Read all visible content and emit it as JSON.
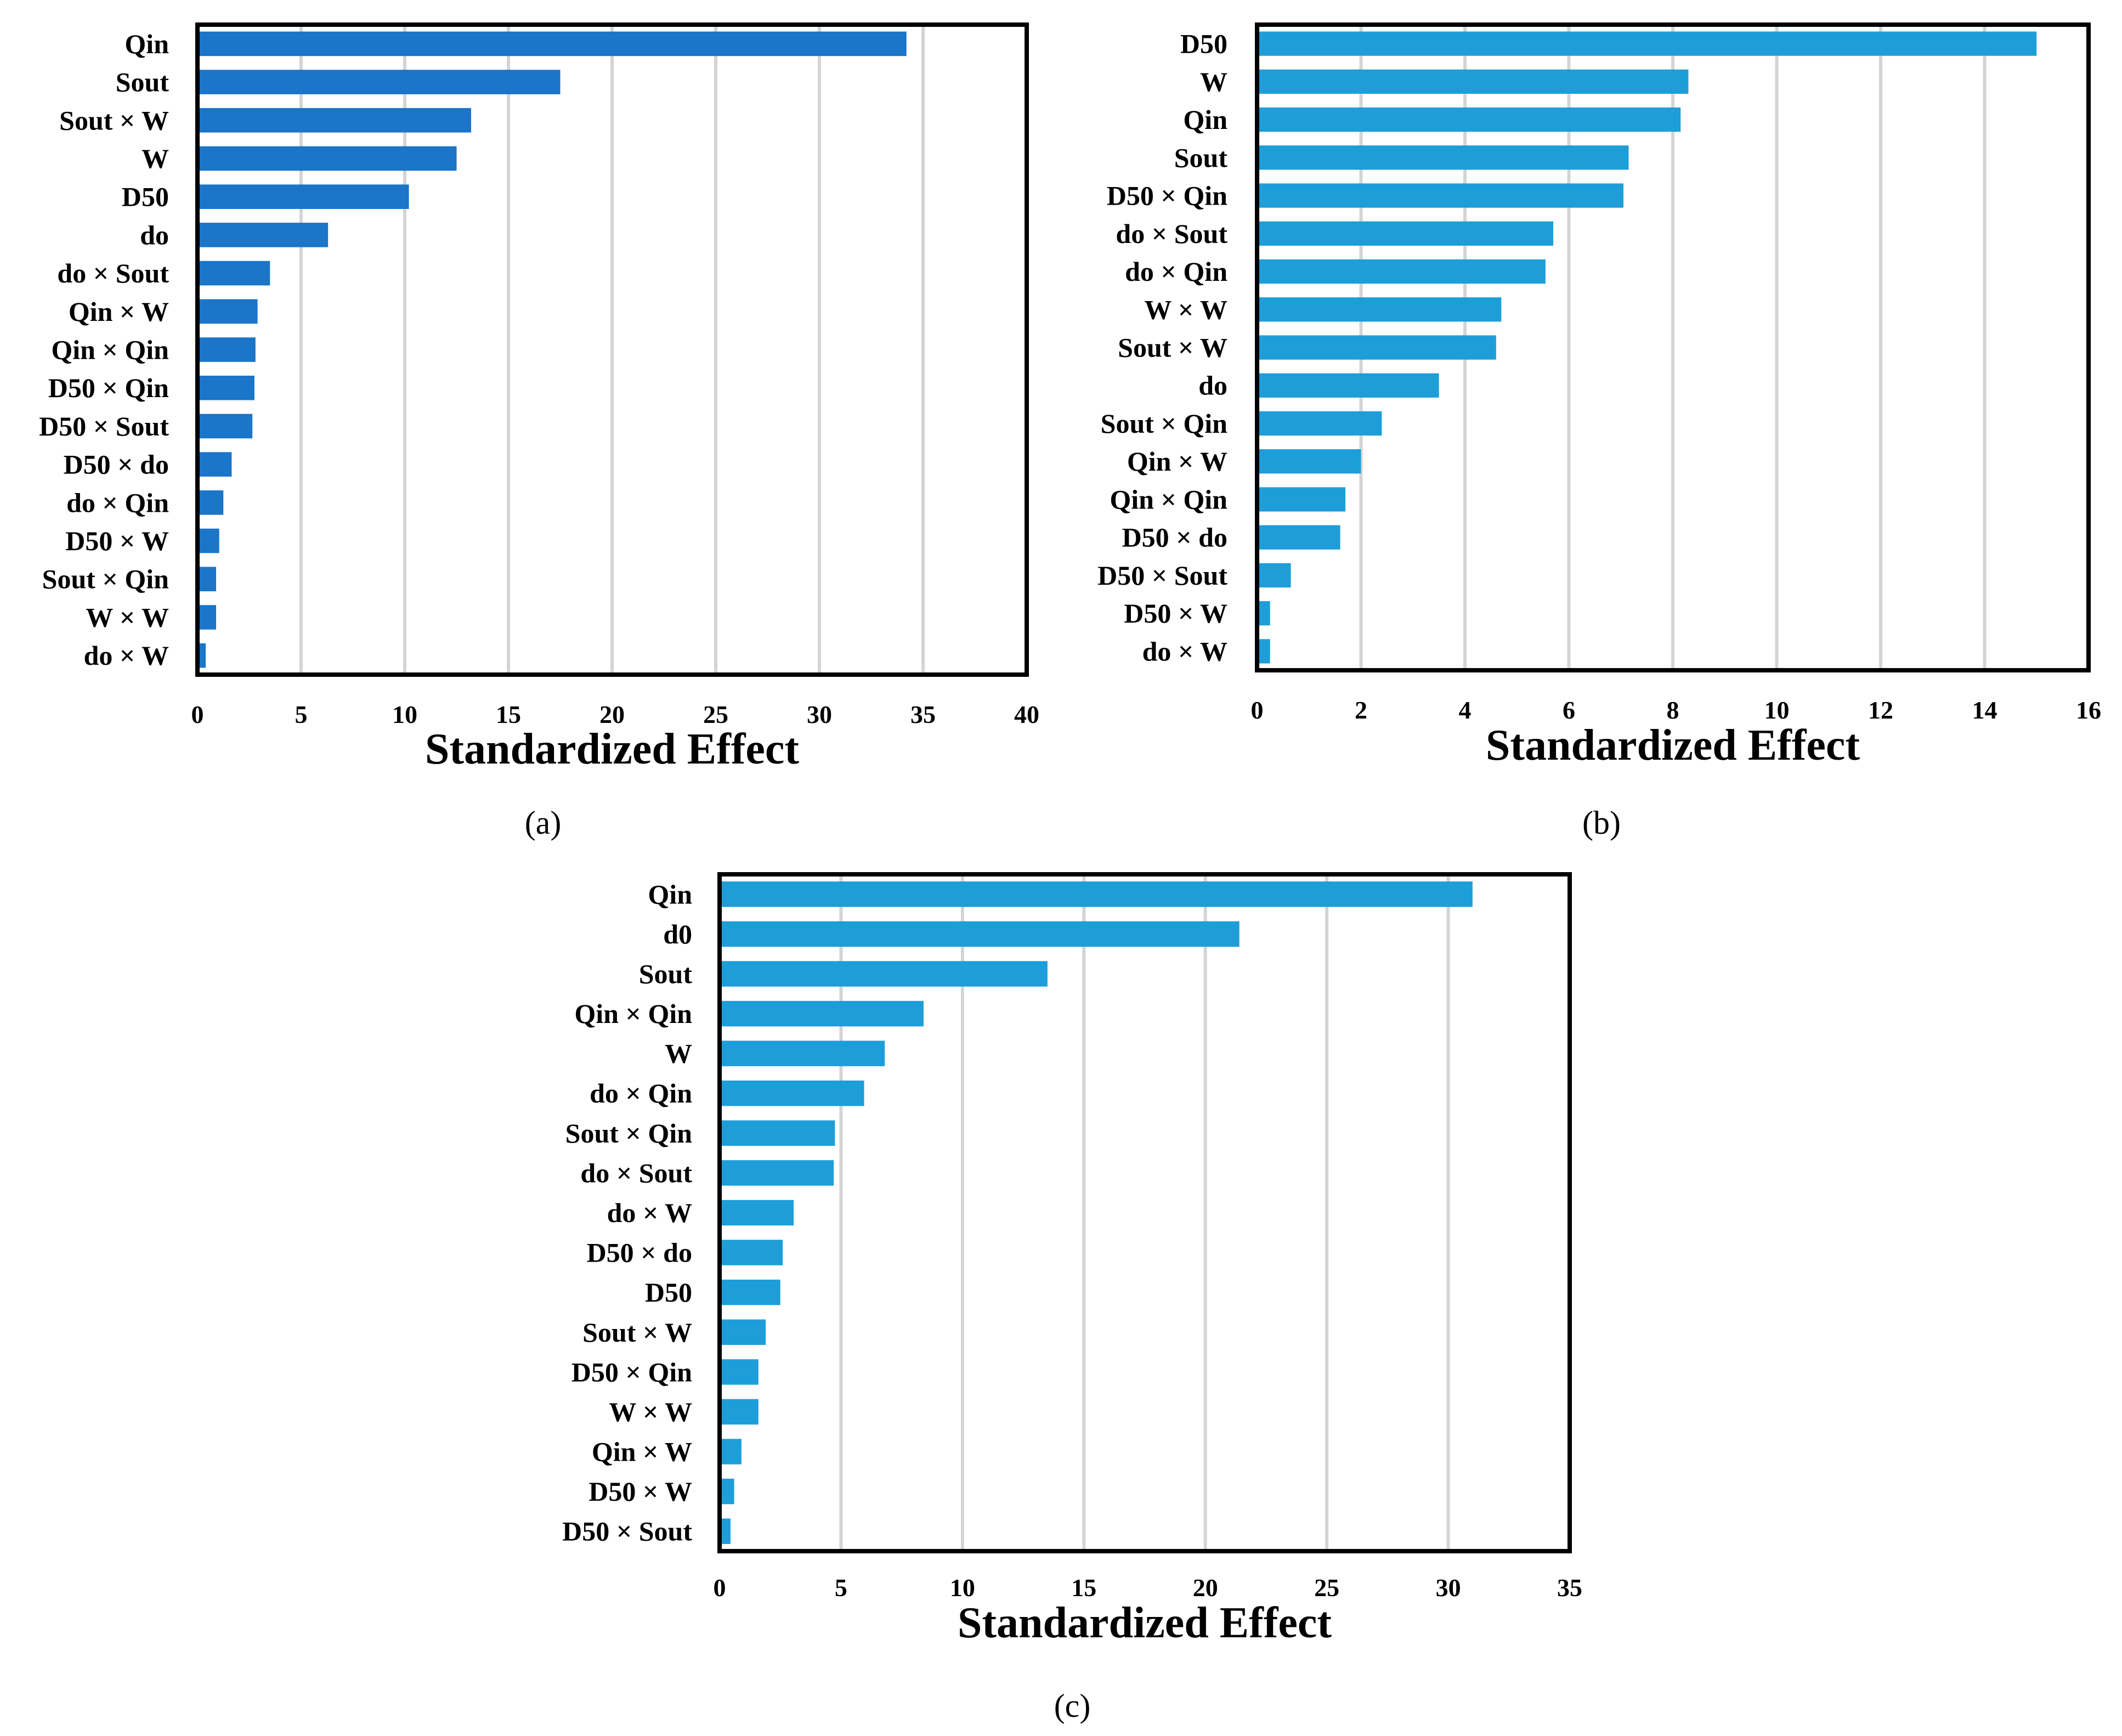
{
  "figure": {
    "panel_labels": [
      "(a)",
      "(b)",
      "(c)"
    ]
  },
  "chart_data": [
    {
      "type": "bar",
      "orientation": "horizontal",
      "panel": "(a)",
      "color": "#1b75c9",
      "categories": [
        "Qin",
        "Sout",
        "Sout × W",
        "W",
        "D50",
        "do",
        "do × Sout",
        "Qin × W",
        "Qin × Qin",
        "D50 × Qin",
        "D50 × Sout",
        "D50 × do",
        "do × Qin",
        "D50 × W",
        "Sout × Qin",
        "W × W",
        "do × W"
      ],
      "values": [
        34.2,
        17.5,
        13.2,
        12.5,
        10.2,
        6.3,
        3.5,
        2.9,
        2.8,
        2.75,
        2.65,
        1.65,
        1.25,
        1.05,
        0.9,
        0.9,
        0.4
      ],
      "xlabel": "Standardized Effect",
      "xlim": [
        0,
        40
      ],
      "xticks": [
        0,
        5,
        10,
        15,
        20,
        25,
        30,
        35,
        40
      ],
      "grid": "vertical"
    },
    {
      "type": "bar",
      "orientation": "horizontal",
      "panel": "(b)",
      "color": "#1e9ed9",
      "categories": [
        "D50",
        "W",
        "Qin",
        "Sout",
        "D50 × Qin",
        "do × Sout",
        "do × Qin",
        "W  × W",
        "Sout × W",
        "do",
        "Sout × Qin",
        "Qin × W",
        "Qin × Qin",
        "D50 × do",
        "D50 × Sout",
        "D50 × W",
        "do × W"
      ],
      "values": [
        15.0,
        8.3,
        8.15,
        7.15,
        7.05,
        5.7,
        5.55,
        4.7,
        4.6,
        3.5,
        2.4,
        2.0,
        1.7,
        1.6,
        0.65,
        0.25,
        0.25
      ],
      "xlabel": "Standardized Effect",
      "xlim": [
        0,
        16
      ],
      "xticks": [
        0,
        2,
        4,
        6,
        8,
        10,
        12,
        14,
        16
      ],
      "grid": "vertical"
    },
    {
      "type": "bar",
      "orientation": "horizontal",
      "panel": "(c)",
      "color": "#1e9ed9",
      "categories": [
        "Qin",
        "d0",
        "Sout",
        "Qin × Qin",
        "W",
        "do × Qin",
        "Sout × Qin",
        "do × Sout",
        "do × W",
        "D50 × do",
        "D50",
        "Sout × W",
        "D50 × Qin",
        "W × W",
        "Qin × W",
        "D50 × W",
        "D50 × Sout"
      ],
      "values": [
        31.0,
        21.4,
        13.5,
        8.4,
        6.8,
        5.95,
        4.75,
        4.7,
        3.05,
        2.6,
        2.5,
        1.9,
        1.6,
        1.6,
        0.9,
        0.6,
        0.45
      ],
      "xlabel": "Standardized Effect",
      "xlim": [
        0,
        35
      ],
      "xticks": [
        0,
        5,
        10,
        15,
        20,
        25,
        30,
        35
      ],
      "grid": "vertical"
    }
  ]
}
